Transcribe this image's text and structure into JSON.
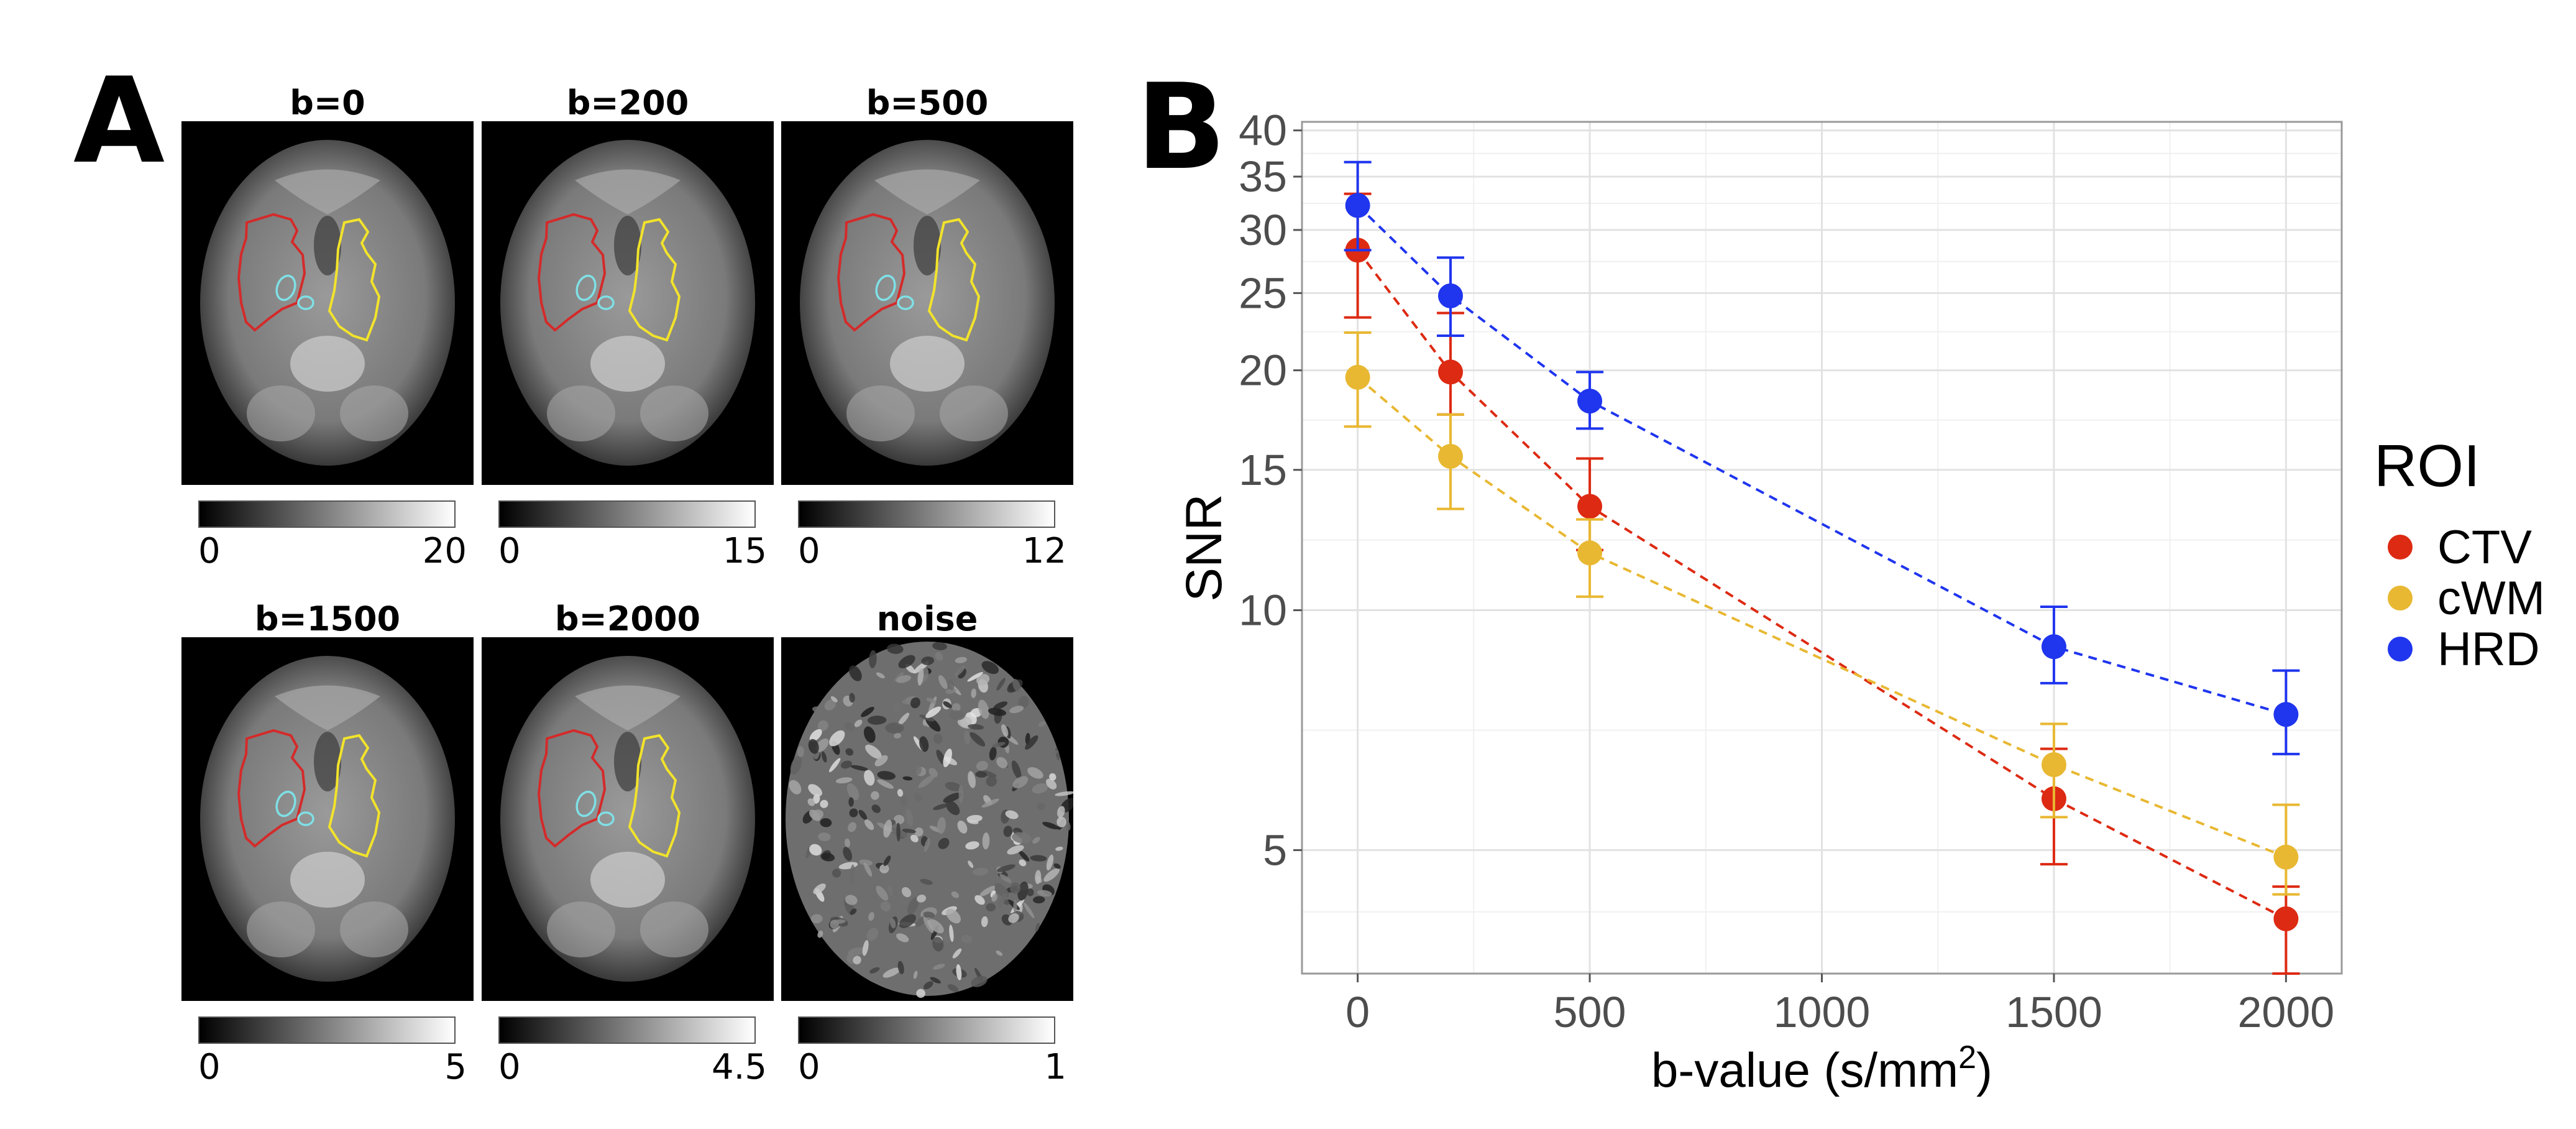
{
  "panel_a": {
    "letter": "A",
    "images": [
      {
        "title": "b=0",
        "cbar_min": "0",
        "cbar_max": "20"
      },
      {
        "title": "b=200",
        "cbar_min": "0",
        "cbar_max": "15"
      },
      {
        "title": "b=500",
        "cbar_min": "0",
        "cbar_max": "12"
      },
      {
        "title": "b=1500",
        "cbar_min": "0",
        "cbar_max": "5"
      },
      {
        "title": "b=2000",
        "cbar_min": "0",
        "cbar_max": "4.5"
      },
      {
        "title": "noise",
        "cbar_min": "0",
        "cbar_max": "1"
      }
    ],
    "contour_colors": {
      "ctv": "#d42a2a",
      "cwm": "#f2e32b",
      "hrd": "#7fe0e6"
    }
  },
  "panel_b": {
    "letter": "B"
  },
  "chart_data": {
    "type": "line",
    "title": "",
    "xlabel": "b-value (s/mm2)",
    "xlabel_main": "b-value (s/mm",
    "xlabel_sup": "2",
    "xlabel_end": ")",
    "ylabel": "SNR",
    "yscale": "log",
    "xlim": [
      -120,
      2120
    ],
    "ylim": [
      3.5,
      41
    ],
    "x_ticks": [
      0,
      500,
      1000,
      1500,
      2000
    ],
    "x_tick_labels": [
      "0",
      "500",
      "1000",
      "1500",
      "2000"
    ],
    "y_ticks": [
      5,
      10,
      15,
      20,
      25,
      30,
      35,
      40
    ],
    "y_tick_labels": [
      "5",
      "10",
      "15",
      "20",
      "25",
      "30",
      "35",
      "40"
    ],
    "grid": true,
    "legend": {
      "title": "ROI",
      "placement": "right"
    },
    "x": [
      0,
      200,
      500,
      1500,
      2000
    ],
    "series": [
      {
        "name": "CTV",
        "color": "#dd2a12",
        "values": [
          28.3,
          19.9,
          13.5,
          5.8,
          4.1
        ],
        "err_low": [
          23.3,
          17.6,
          11.9,
          4.8,
          3.5
        ],
        "err_high": [
          33.3,
          23.6,
          15.5,
          6.7,
          4.5
        ]
      },
      {
        "name": "cWM",
        "color": "#e8b832",
        "values": [
          19.6,
          15.6,
          11.8,
          6.4,
          4.9
        ],
        "err_low": [
          17.0,
          13.4,
          10.4,
          5.5,
          4.4
        ],
        "err_high": [
          22.3,
          17.6,
          13.0,
          7.2,
          5.7
        ]
      },
      {
        "name": "HRD",
        "color": "#1f35ee",
        "values": [
          32.2,
          24.8,
          18.3,
          9.0,
          7.4
        ],
        "err_low": [
          28.3,
          22.1,
          16.9,
          8.1,
          6.6
        ],
        "err_high": [
          36.5,
          27.7,
          19.9,
          10.1,
          8.4
        ]
      }
    ]
  }
}
